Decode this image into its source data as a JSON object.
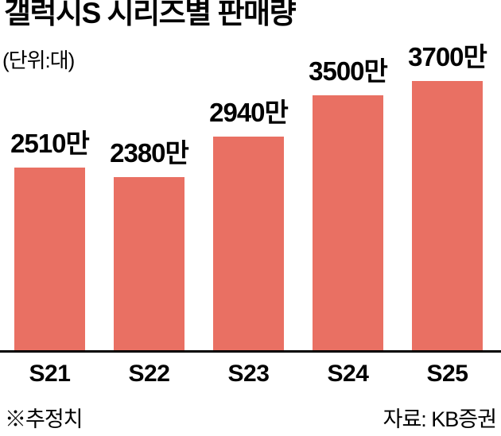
{
  "title": "갤럭시S 시리즈별 판매량",
  "unit_label": "(단위:대)",
  "footnote": "※추정치",
  "source": "자료: KB증권",
  "colors": {
    "bar": "#E97063",
    "text": "#000000",
    "axis": "#000000",
    "background": "#FFFFFF"
  },
  "chart_data": {
    "type": "bar",
    "title": "갤럭시S 시리즈별 판매량",
    "unit": "대",
    "unit_note": "(단위:대)",
    "categories": [
      "S21",
      "S22",
      "S23",
      "S24",
      "S25"
    ],
    "values": [
      2510,
      2380,
      2940,
      3500,
      3700
    ],
    "value_suffix": "만",
    "value_labels": [
      "2510만",
      "2380만",
      "2940만",
      "3500만",
      "3700만"
    ],
    "ylim": [
      0,
      3700
    ],
    "grid": false,
    "legend": "none",
    "footnote": "※추정치",
    "source_label": "자료: KB증권"
  }
}
